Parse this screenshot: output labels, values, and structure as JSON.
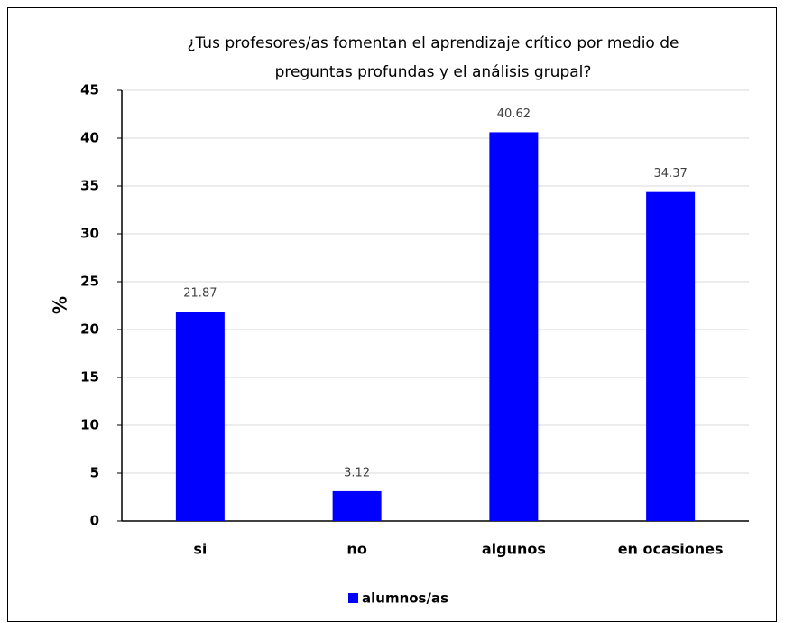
{
  "chart_data": {
    "type": "bar",
    "title": [
      "¿Tus profesores/as fomentan el aprendizaje crítico por medio de",
      "preguntas profundas y el análisis grupal?"
    ],
    "y_label": "%",
    "categories": [
      "si",
      "no",
      "algunos",
      "en ocasiones"
    ],
    "series": [
      {
        "name": "alumnos/as",
        "color": "#0000ff",
        "values": [
          21.87,
          3.12,
          40.62,
          34.37
        ]
      }
    ],
    "ylim": [
      0,
      45
    ],
    "yticks": [
      0,
      5,
      10,
      15,
      20,
      25,
      30,
      35,
      40,
      45
    ],
    "grid": true,
    "legend": "bottom"
  }
}
